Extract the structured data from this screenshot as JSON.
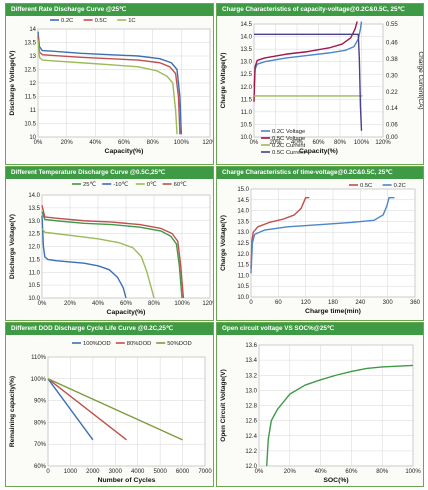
{
  "panels": [
    {
      "title": "Different Rate Discharge Curve @25℃"
    },
    {
      "title": "Charge  Characteristics of capacity-voltage@0.2C&0.5C, 25℃"
    },
    {
      "title": "Different Temperature Discharge Curve @0.5C,25℃"
    },
    {
      "title": "Charge  Characteristics of time-voltage@0.2C&0.5C, 25℃"
    },
    {
      "title": "Different DOD Discharge Cycle Life Curve @0.2C,25℃"
    },
    {
      "title": "Open circuit voltage VS SOC%@25℃"
    }
  ],
  "chart_data": [
    {
      "type": "line",
      "title": "Different Rate Discharge Curve @25℃",
      "xlabel": "Capacity(%)",
      "ylabel": "Discharge Voltage(V)",
      "xlim": [
        0,
        120
      ],
      "ylim": [
        10,
        14
      ],
      "x_ticks": [
        0,
        20,
        40,
        60,
        80,
        100,
        120
      ],
      "x_tick_labels": [
        "0%",
        "20%",
        "40%",
        "60%",
        "80%",
        "100%",
        "120%"
      ],
      "y_ticks": [
        10,
        10.5,
        11,
        11.5,
        12,
        12.5,
        13,
        13.5,
        14
      ],
      "y_tick_labels": [
        "10",
        "10.5",
        "11",
        "11.5",
        "12",
        "12.5",
        "13",
        "13.5",
        "14"
      ],
      "grid": true,
      "legend": "top",
      "series": [
        {
          "name": "0.2C",
          "color": "#3d6fb6",
          "points": [
            [
              0,
              13.9
            ],
            [
              1,
              13.35
            ],
            [
              3,
              13.2
            ],
            [
              10,
              13.18
            ],
            [
              30,
              13.1
            ],
            [
              50,
              13.05
            ],
            [
              70,
              13.0
            ],
            [
              85,
              12.9
            ],
            [
              93,
              12.75
            ],
            [
              97,
              12.5
            ],
            [
              99,
              11.5
            ],
            [
              100,
              10.1
            ]
          ]
        },
        {
          "name": "0.5C",
          "color": "#c0504d",
          "points": [
            [
              0,
              13.75
            ],
            [
              1,
              13.15
            ],
            [
              3,
              13.05
            ],
            [
              10,
              13.02
            ],
            [
              30,
              12.95
            ],
            [
              50,
              12.9
            ],
            [
              70,
              12.85
            ],
            [
              85,
              12.75
            ],
            [
              92,
              12.6
            ],
            [
              96,
              12.35
            ],
            [
              98,
              11.5
            ],
            [
              99,
              10.1
            ]
          ]
        },
        {
          "name": "1C",
          "color": "#9bbb59",
          "points": [
            [
              0,
              13.6
            ],
            [
              1,
              12.95
            ],
            [
              3,
              12.85
            ],
            [
              10,
              12.82
            ],
            [
              30,
              12.75
            ],
            [
              50,
              12.68
            ],
            [
              70,
              12.6
            ],
            [
              83,
              12.45
            ],
            [
              90,
              12.25
            ],
            [
              94,
              12.0
            ],
            [
              96,
              11.0
            ],
            [
              97,
              10.1
            ]
          ]
        }
      ]
    },
    {
      "type": "line",
      "title": "Charge  Characteristics of capacity-voltage@0.2C&0.5C, 25℃",
      "xlabel": "Capacity(%)",
      "ylabel": "Charge Voltage(V)",
      "y2label": "Charge Current(CA)",
      "xlim": [
        0,
        120
      ],
      "ylim": [
        10,
        14.5
      ],
      "y2lim": [
        0,
        0.55
      ],
      "x_ticks": [
        0,
        20,
        40,
        60,
        80,
        100,
        120
      ],
      "x_tick_labels": [
        "0%",
        "20%",
        "40%",
        "60%",
        "80%",
        "100%",
        "120%"
      ],
      "y_ticks": [
        10,
        10.5,
        11,
        11.5,
        12,
        12.5,
        13,
        13.5,
        14,
        14.5
      ],
      "y_tick_labels": [
        "10.0",
        "10.5",
        "11.0",
        "11.5",
        "12.0",
        "12.5",
        "13.0",
        "13.5",
        "14.0",
        "14.5"
      ],
      "y2_ticks": [
        0,
        0.06,
        0.14,
        0.22,
        0.3,
        0.38,
        0.46,
        0.55
      ],
      "y2_tick_labels": [
        "0.00",
        "0.06",
        "0.14",
        "0.22",
        "0.30",
        "0.38",
        "0.46",
        "0.55"
      ],
      "grid": true,
      "legend": "bottom-left",
      "series": [
        {
          "name": "0.2C Voltage",
          "axis": "left",
          "color": "#4a86c8",
          "points": [
            [
              0,
              12.0
            ],
            [
              1,
              12.7
            ],
            [
              3,
              12.9
            ],
            [
              10,
              13.0
            ],
            [
              30,
              13.15
            ],
            [
              50,
              13.25
            ],
            [
              70,
              13.35
            ],
            [
              85,
              13.45
            ],
            [
              93,
              13.6
            ],
            [
              97,
              13.9
            ],
            [
              99,
              14.3
            ],
            [
              100,
              14.6
            ]
          ]
        },
        {
          "name": "0.5C Voltage",
          "axis": "left",
          "color": "#a0184a",
          "points": [
            [
              0,
              11.4
            ],
            [
              1,
              12.8
            ],
            [
              3,
              13.05
            ],
            [
              10,
              13.15
            ],
            [
              30,
              13.3
            ],
            [
              50,
              13.4
            ],
            [
              70,
              13.55
            ],
            [
              82,
              13.7
            ],
            [
              90,
              13.95
            ],
            [
              94,
              14.3
            ],
            [
              96,
              14.6
            ]
          ]
        },
        {
          "name": "0.2C Current",
          "axis": "right",
          "color": "#9bbb59",
          "points": [
            [
              0,
              0.2
            ],
            [
              101,
              0.2
            ]
          ]
        },
        {
          "name": "0.5C Current",
          "axis": "right",
          "color": "#4a3f8a",
          "points": [
            [
              0,
              0.5
            ],
            [
              97,
              0.5
            ],
            [
              98,
              0.38
            ],
            [
              99,
              0.15
            ],
            [
              100,
              0.03
            ]
          ]
        }
      ]
    },
    {
      "type": "line",
      "title": "Different Temperature Discharge Curve @0.5C,25℃",
      "xlabel": "Capacity(%)",
      "ylabel": "Discharge Voltage(V)",
      "xlim": [
        0,
        120
      ],
      "ylim": [
        10,
        14
      ],
      "x_ticks": [
        0,
        20,
        40,
        60,
        80,
        100,
        120
      ],
      "x_tick_labels": [
        "0%",
        "20%",
        "40%",
        "60%",
        "80%",
        "100%",
        "120%"
      ],
      "y_ticks": [
        10,
        10.5,
        11,
        11.5,
        12,
        12.5,
        13,
        13.5,
        14
      ],
      "y_tick_labels": [
        "10.0",
        "10.5",
        "11.0",
        "11.5",
        "12.0",
        "12.5",
        "13.0",
        "13.5",
        "14.0"
      ],
      "grid": true,
      "legend": "top",
      "series": [
        {
          "name": "25℃",
          "color": "#3f9a45",
          "points": [
            [
              0,
              13.35
            ],
            [
              2,
              13.05
            ],
            [
              10,
              13.0
            ],
            [
              30,
              12.9
            ],
            [
              50,
              12.85
            ],
            [
              70,
              12.75
            ],
            [
              85,
              12.6
            ],
            [
              92,
              12.4
            ],
            [
              96,
              12.1
            ],
            [
              98,
              11.3
            ],
            [
              100,
              10.0
            ]
          ]
        },
        {
          "name": "-10℃",
          "color": "#3d6fb6",
          "points": [
            [
              0,
              13.2
            ],
            [
              1,
              12.0
            ],
            [
              2,
              11.6
            ],
            [
              4,
              11.5
            ],
            [
              10,
              11.45
            ],
            [
              20,
              11.4
            ],
            [
              30,
              11.35
            ],
            [
              40,
              11.25
            ],
            [
              48,
              11.1
            ],
            [
              54,
              10.8
            ],
            [
              58,
              10.4
            ],
            [
              60,
              10.0
            ]
          ]
        },
        {
          "name": "0℃",
          "color": "#9bbb59",
          "points": [
            [
              0,
              12.7
            ],
            [
              2,
              12.55
            ],
            [
              10,
              12.5
            ],
            [
              25,
              12.4
            ],
            [
              40,
              12.3
            ],
            [
              55,
              12.15
            ],
            [
              65,
              11.95
            ],
            [
              71,
              11.6
            ],
            [
              75,
              11.0
            ],
            [
              78,
              10.4
            ],
            [
              80,
              10.0
            ]
          ]
        },
        {
          "name": "60℃",
          "color": "#c0504d",
          "points": [
            [
              0,
              13.6
            ],
            [
              2,
              13.15
            ],
            [
              10,
              13.1
            ],
            [
              30,
              13.0
            ],
            [
              50,
              12.95
            ],
            [
              70,
              12.85
            ],
            [
              85,
              12.7
            ],
            [
              93,
              12.5
            ],
            [
              97,
              12.2
            ],
            [
              99,
              11.3
            ],
            [
              101,
              10.0
            ]
          ]
        }
      ]
    },
    {
      "type": "line",
      "title": "Charge  Characteristics of time-voltage@0.2C&0.5C, 25℃",
      "xlabel": "Charge time(min)",
      "ylabel": "Charge Voltage(V)",
      "xlim": [
        0,
        360
      ],
      "ylim": [
        10,
        15
      ],
      "x_ticks": [
        0,
        60,
        120,
        180,
        240,
        300,
        360
      ],
      "x_tick_labels": [
        "0",
        "60",
        "120",
        "180",
        "240",
        "300",
        "360"
      ],
      "y_ticks": [
        10,
        10.5,
        11,
        11.5,
        12,
        12.5,
        13,
        13.5,
        14,
        14.5,
        15
      ],
      "y_tick_labels": [
        "10.0",
        "10.5",
        "11.0",
        "11.5",
        "12.0",
        "12.5",
        "13.0",
        "13.5",
        "14.0",
        "14.5",
        "15.0"
      ],
      "grid": true,
      "legend": "top-right",
      "series": [
        {
          "name": "0.5C",
          "color": "#c0504d",
          "points": [
            [
              0,
              11.3
            ],
            [
              2,
              12.6
            ],
            [
              5,
              13.0
            ],
            [
              15,
              13.25
            ],
            [
              40,
              13.45
            ],
            [
              70,
              13.6
            ],
            [
              95,
              13.8
            ],
            [
              110,
              14.1
            ],
            [
              118,
              14.5
            ],
            [
              120,
              14.6
            ],
            [
              128,
              14.6
            ]
          ]
        },
        {
          "name": "0.2C",
          "color": "#4a86c8",
          "points": [
            [
              0,
              11.1
            ],
            [
              3,
              12.5
            ],
            [
              8,
              12.9
            ],
            [
              30,
              13.1
            ],
            [
              80,
              13.25
            ],
            [
              150,
              13.35
            ],
            [
              220,
              13.45
            ],
            [
              270,
              13.55
            ],
            [
              290,
              13.8
            ],
            [
              298,
              14.2
            ],
            [
              303,
              14.6
            ],
            [
              315,
              14.6
            ]
          ]
        }
      ]
    },
    {
      "type": "line",
      "title": "Different DOD Discharge Cycle Life Curve @0.2C,25℃",
      "xlabel": "Number of Cycles",
      "ylabel": "Remaining capacity(%)",
      "xlim": [
        0,
        7000
      ],
      "ylim": [
        60,
        110
      ],
      "x_ticks": [
        0,
        1000,
        2000,
        3000,
        4000,
        5000,
        6000,
        7000
      ],
      "x_tick_labels": [
        "0",
        "1000",
        "2000",
        "3000",
        "4000",
        "5000",
        "6000",
        "7000"
      ],
      "y_ticks": [
        60,
        70,
        80,
        90,
        100,
        110
      ],
      "y_tick_labels": [
        "60%",
        "70%",
        "80%",
        "90%",
        "100%",
        "110%"
      ],
      "grid": true,
      "legend": "top",
      "series": [
        {
          "name": "100%DOD",
          "color": "#3d6fb6",
          "points": [
            [
              0,
              100
            ],
            [
              2000,
              72
            ]
          ]
        },
        {
          "name": "80%DOD",
          "color": "#c0504d",
          "points": [
            [
              0,
              100
            ],
            [
              3500,
              72
            ]
          ]
        },
        {
          "name": "50%DOD",
          "color": "#7f9a3a",
          "points": [
            [
              0,
              100
            ],
            [
              6000,
              72
            ]
          ]
        }
      ]
    },
    {
      "type": "line",
      "title": "Open circuit voltage VS SOC%@25℃",
      "xlabel": "SOC(%)",
      "ylabel": "Open Circuit Voltage(V)",
      "xlim": [
        0,
        100
      ],
      "ylim": [
        12,
        13.6
      ],
      "x_ticks": [
        0,
        20,
        40,
        60,
        80,
        100
      ],
      "x_tick_labels": [
        "0%",
        "20%",
        "40%",
        "60%",
        "80%",
        "100%"
      ],
      "y_ticks": [
        12,
        12.2,
        12.4,
        12.6,
        12.8,
        13,
        13.2,
        13.4,
        13.6
      ],
      "y_tick_labels": [
        "12.0",
        "12.2",
        "12.4",
        "12.6",
        "12.8",
        "13.0",
        "13.2",
        "13.4",
        "13.6"
      ],
      "grid": true,
      "legend": "none",
      "series": [
        {
          "name": "",
          "color": "#3f9a45",
          "points": [
            [
              5,
              12.0
            ],
            [
              6,
              12.35
            ],
            [
              8,
              12.6
            ],
            [
              12,
              12.75
            ],
            [
              20,
              12.95
            ],
            [
              30,
              13.07
            ],
            [
              40,
              13.14
            ],
            [
              50,
              13.2
            ],
            [
              60,
              13.25
            ],
            [
              70,
              13.29
            ],
            [
              80,
              13.31
            ],
            [
              90,
              13.32
            ],
            [
              100,
              13.33
            ]
          ]
        }
      ]
    }
  ]
}
